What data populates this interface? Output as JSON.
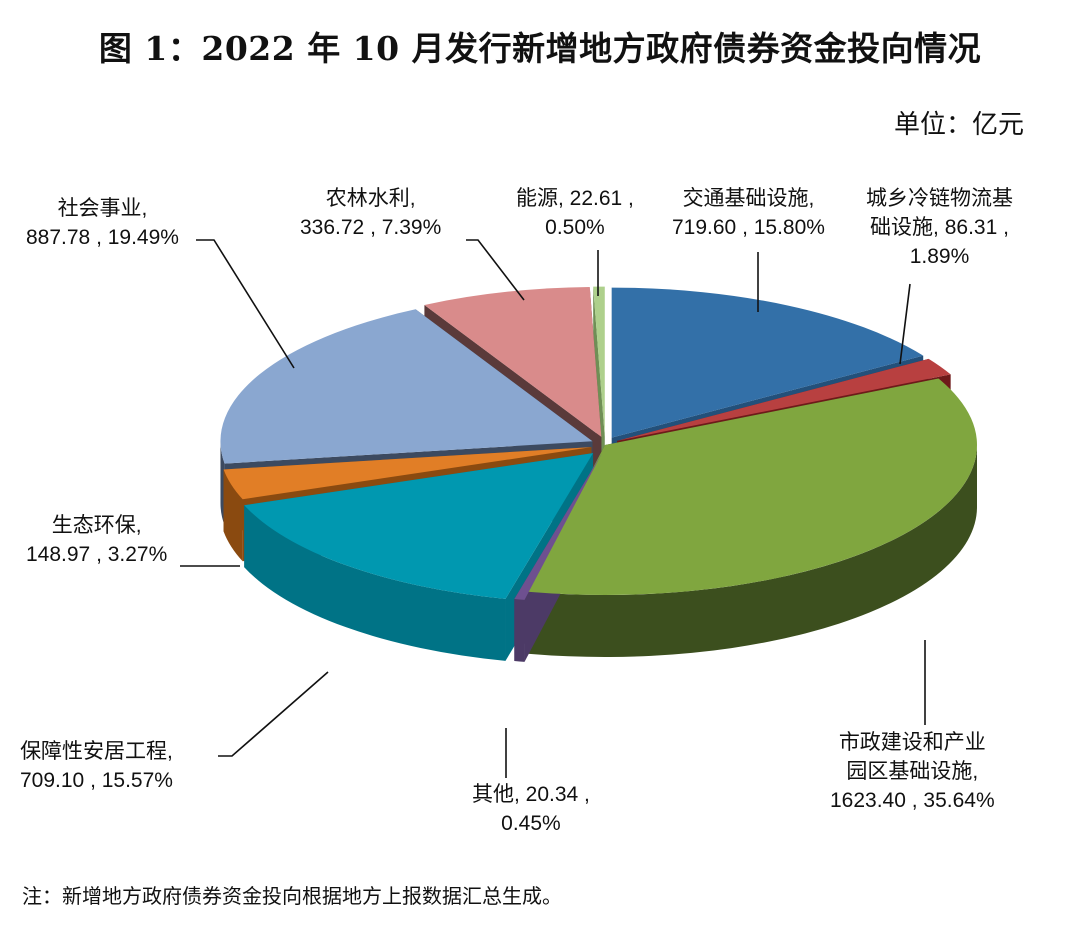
{
  "title": "图 1：2022 年 10 月发行新增地方政府债券资金投向情况",
  "unit": "单位：亿元",
  "note": "注：新增地方政府债券资金投向根据地方上报数据汇总生成。",
  "labels": {
    "transport": {
      "line1": "交通基础设施,",
      "line2": "719.60 , 15.80%"
    },
    "coldchain": {
      "line1": "城乡冷链物流基",
      "line2": "础设施, 86.31 ,",
      "line3": "1.89%"
    },
    "municipal": {
      "line1": "市政建设和产业",
      "line2": "园区基础设施,",
      "line3": "1623.40 , 35.64%"
    },
    "other": {
      "line1": "其他, 20.34 ,",
      "line2": "0.45%"
    },
    "housing": {
      "line1": "保障性安居工程,",
      "line2": "709.10 , 15.57%"
    },
    "eco": {
      "line1": "生态环保,",
      "line2": "148.97 , 3.27%"
    },
    "social": {
      "line1": "社会事业,",
      "line2": "887.78 , 19.49%"
    },
    "agri": {
      "line1": "农林水利,",
      "line2": "336.72 , 7.39%"
    },
    "energy": {
      "line1": "能源, 22.61 ,",
      "line2": "0.50%"
    }
  },
  "chart_data": {
    "type": "pie",
    "style": "3d-exploded",
    "title": "图 1：2022 年 10 月发行新增地方政府债券资金投向情况",
    "unit": "亿元",
    "categories": [
      "交通基础设施",
      "城乡冷链物流基础设施",
      "市政建设和产业园区基础设施",
      "其他",
      "保障性安居工程",
      "生态环保",
      "社会事业",
      "农林水利",
      "能源"
    ],
    "values": [
      719.6,
      86.31,
      1623.4,
      20.34,
      709.1,
      148.97,
      887.78,
      336.72,
      22.61
    ],
    "percentages": [
      15.8,
      1.89,
      35.64,
      0.45,
      15.57,
      3.27,
      19.49,
      7.39,
      0.5
    ],
    "colors": [
      "#3370a8",
      "#b84040",
      "#80a63f",
      "#6e5090",
      "#0098b0",
      "#e17e26",
      "#8aa7d0",
      "#d98b8b",
      "#aed08c"
    ],
    "side_colors": [
      "#23507a",
      "#6e1a1a",
      "#3c4f1e",
      "#4c3a66",
      "#007386",
      "#8a4a10",
      "#3c4a60",
      "#5a3a3a",
      "#6f8f55"
    ],
    "legend": "none (data labels with leader lines)"
  }
}
